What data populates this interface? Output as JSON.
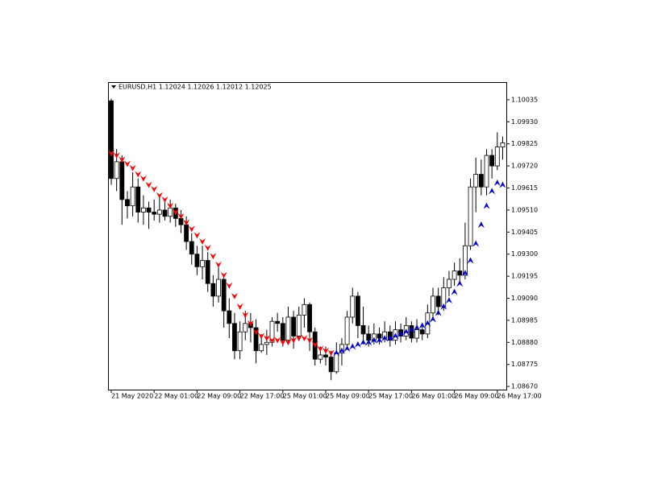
{
  "chart_data": {
    "type": "candlestick",
    "title": "EURUSD,H1  1.12024 1.12026 1.12012 1.12025",
    "categories": [
      "21 May 2020",
      null,
      null,
      null,
      null,
      null,
      null,
      null,
      "22 May 01:00",
      null,
      null,
      null,
      null,
      null,
      null,
      null,
      "22 May 09:00",
      null,
      null,
      null,
      null,
      null,
      null,
      null,
      "22 May 17:00",
      null,
      null,
      null,
      null,
      null,
      null,
      null,
      "25 May 01:00",
      null,
      null,
      null,
      null,
      null,
      null,
      null,
      "25 May 09:00",
      null,
      null,
      null,
      null,
      null,
      null,
      null,
      "25 May 17:00",
      null,
      null,
      null,
      null,
      null,
      null,
      null,
      "26 May 01:00",
      null,
      null,
      null,
      null,
      null,
      null,
      null,
      "26 May 09:00",
      null,
      null,
      null,
      null,
      null,
      null,
      null,
      "26 May 17:00",
      null
    ],
    "open": [
      1.1003,
      1.0966,
      1.0974,
      1.0956,
      1.0953,
      1.0962,
      1.095,
      1.0952,
      1.095,
      1.0949,
      1.0951,
      1.0948,
      1.0952,
      1.0947,
      1.0944,
      1.0936,
      1.093,
      1.0924,
      1.0927,
      1.0916,
      1.091,
      1.0918,
      1.0903,
      1.0897,
      1.0884,
      1.0893,
      1.0897,
      1.0895,
      1.0884,
      1.0887,
      1.0888,
      1.0898,
      1.0897,
      1.0889,
      1.09,
      1.0891,
      1.0901,
      1.0906,
      1.0893,
      1.088,
      1.0882,
      1.0881,
      1.0874,
      1.0883,
      1.0887,
      1.09,
      1.091,
      1.0896,
      1.0892,
      1.0889,
      1.0892,
      1.089,
      1.0893,
      1.0889,
      1.0894,
      1.0891,
      1.0896,
      1.089,
      1.0894,
      1.0892,
      1.0902,
      1.091,
      1.0905,
      1.0914,
      1.0918,
      1.0922,
      1.092,
      1.0934,
      1.0962,
      1.0968,
      1.0962,
      1.0977,
      1.0972,
      1.0981
    ],
    "high": [
      1.1004,
      1.098,
      1.0977,
      1.096,
      1.0969,
      1.0966,
      1.0958,
      1.0955,
      1.0956,
      1.0957,
      1.0955,
      1.0956,
      1.0954,
      1.0951,
      1.0948,
      1.094,
      1.0934,
      1.0934,
      1.0931,
      1.092,
      1.0925,
      1.092,
      1.0909,
      1.0902,
      1.0898,
      1.0903,
      1.0902,
      1.0899,
      1.0892,
      1.0894,
      1.09,
      1.0902,
      1.09,
      1.0905,
      1.0903,
      1.0905,
      1.0909,
      1.0907,
      1.0895,
      1.0886,
      1.0886,
      1.0884,
      1.0888,
      1.089,
      1.0903,
      1.0914,
      1.0912,
      1.0905,
      1.0896,
      1.0897,
      1.0895,
      1.0898,
      1.0896,
      1.0898,
      1.0897,
      1.09,
      1.0898,
      1.0899,
      1.0897,
      1.0906,
      1.0914,
      1.0914,
      1.0919,
      1.0922,
      1.0926,
      1.0928,
      1.0945,
      1.0966,
      1.0976,
      1.0975,
      1.098,
      1.098,
      1.0988,
      1.0986
    ],
    "low": [
      1.0963,
      1.096,
      1.0944,
      1.0947,
      1.0948,
      1.0945,
      1.0944,
      1.0942,
      1.0946,
      1.0945,
      1.0946,
      1.0945,
      1.0943,
      1.094,
      1.0932,
      1.0925,
      1.092,
      1.0918,
      1.0912,
      1.0905,
      1.0907,
      1.0895,
      1.089,
      1.088,
      1.088,
      1.0889,
      1.0888,
      1.0878,
      1.0883,
      1.0882,
      1.0886,
      1.0893,
      1.0886,
      1.0887,
      1.0885,
      1.0889,
      1.0895,
      1.0884,
      1.0877,
      1.0878,
      1.0877,
      1.087,
      1.0873,
      1.0877,
      1.0886,
      1.0897,
      1.089,
      1.0887,
      1.0886,
      1.0887,
      1.0887,
      1.0888,
      1.0886,
      1.0887,
      1.0888,
      1.0889,
      1.0888,
      1.0888,
      1.0889,
      1.089,
      1.0899,
      1.0901,
      1.0903,
      1.091,
      1.0915,
      1.0916,
      1.0918,
      1.0932,
      1.095,
      1.0958,
      1.0958,
      1.0966,
      1.097,
      1.0975
    ],
    "close": [
      1.0966,
      1.0974,
      1.0956,
      1.0953,
      1.0962,
      1.095,
      1.0952,
      1.095,
      1.0949,
      1.0951,
      1.0948,
      1.0952,
      1.0947,
      1.0944,
      1.0936,
      1.093,
      1.0924,
      1.0927,
      1.0916,
      1.091,
      1.0918,
      1.0903,
      1.0897,
      1.0884,
      1.0893,
      1.0897,
      1.0895,
      1.0884,
      1.0887,
      1.0888,
      1.0898,
      1.0897,
      1.0889,
      1.09,
      1.0891,
      1.0901,
      1.0906,
      1.0893,
      1.088,
      1.0882,
      1.0881,
      1.0874,
      1.0883,
      1.0887,
      1.09,
      1.091,
      1.0896,
      1.0892,
      1.0889,
      1.0892,
      1.089,
      1.0893,
      1.0889,
      1.0894,
      1.0891,
      1.0896,
      1.089,
      1.0894,
      1.0892,
      1.0902,
      1.091,
      1.0905,
      1.0914,
      1.0918,
      1.0922,
      1.092,
      1.0934,
      1.0962,
      1.0968,
      1.0962,
      1.0977,
      1.0972,
      1.0981,
      1.0983
    ],
    "signals": [
      {
        "color": "#ff0000",
        "direction": "down",
        "values": [
          1.0978,
          1.0977,
          1.0975,
          1.0973,
          1.0971,
          1.0968,
          1.0966,
          1.0963,
          1.0961,
          1.0958,
          1.0956,
          1.0953,
          1.095,
          1.0948,
          1.0945,
          1.0942,
          1.0939,
          1.0936,
          1.0933,
          1.0929,
          1.0925,
          1.092,
          1.0915,
          1.091,
          1.0905,
          1.0901,
          1.0897,
          1.0893,
          1.0891,
          1.089,
          1.0889,
          1.0889,
          1.0888,
          1.0888,
          1.0889,
          1.089,
          1.089,
          1.0889,
          1.0887,
          1.0885,
          1.0884,
          1.0883,
          null,
          null,
          null,
          null,
          null,
          null,
          null,
          null,
          null,
          null,
          null,
          null,
          null,
          null,
          null,
          null,
          null,
          null,
          null,
          null,
          null,
          null,
          null,
          null,
          null,
          null,
          null,
          null,
          null,
          null,
          null,
          null
        ]
      },
      {
        "color": "#0000cc",
        "direction": "up",
        "values": [
          null,
          null,
          null,
          null,
          null,
          null,
          null,
          null,
          null,
          null,
          null,
          null,
          null,
          null,
          null,
          null,
          null,
          null,
          null,
          null,
          null,
          null,
          null,
          null,
          null,
          null,
          null,
          null,
          null,
          null,
          null,
          null,
          null,
          null,
          null,
          null,
          null,
          null,
          null,
          null,
          null,
          null,
          1.0883,
          1.0884,
          1.0885,
          1.0886,
          1.0887,
          1.0888,
          1.0888,
          1.0889,
          1.0889,
          1.089,
          1.089,
          1.0891,
          1.0892,
          1.0893,
          1.0894,
          1.0895,
          1.0896,
          1.0897,
          1.0899,
          1.0902,
          1.0905,
          1.0908,
          1.0912,
          1.0916,
          1.0921,
          1.0927,
          1.0935,
          1.0944,
          1.0953,
          1.096,
          1.0964,
          1.0963
        ]
      }
    ],
    "ylim": [
      1.08655,
      1.10119
    ],
    "yticks": [
      1.10035,
      {
        "value": 1.0993,
        "label": "1.09930"
      },
      1.09825,
      {
        "value": 1.0972,
        "label": "1.09720"
      },
      1.09615,
      {
        "value": 1.0951,
        "label": "1.09510"
      },
      1.09405,
      {
        "value": 1.093,
        "label": "1.09300"
      },
      1.09195,
      {
        "value": 1.0909,
        "label": "1.09090"
      },
      1.08985,
      {
        "value": 1.0888,
        "label": "1.08880"
      },
      1.08775,
      {
        "value": 1.0867,
        "label": "1.08670"
      }
    ],
    "bull_color": "#ffffff",
    "bear_color": "#000000",
    "grid": false
  }
}
